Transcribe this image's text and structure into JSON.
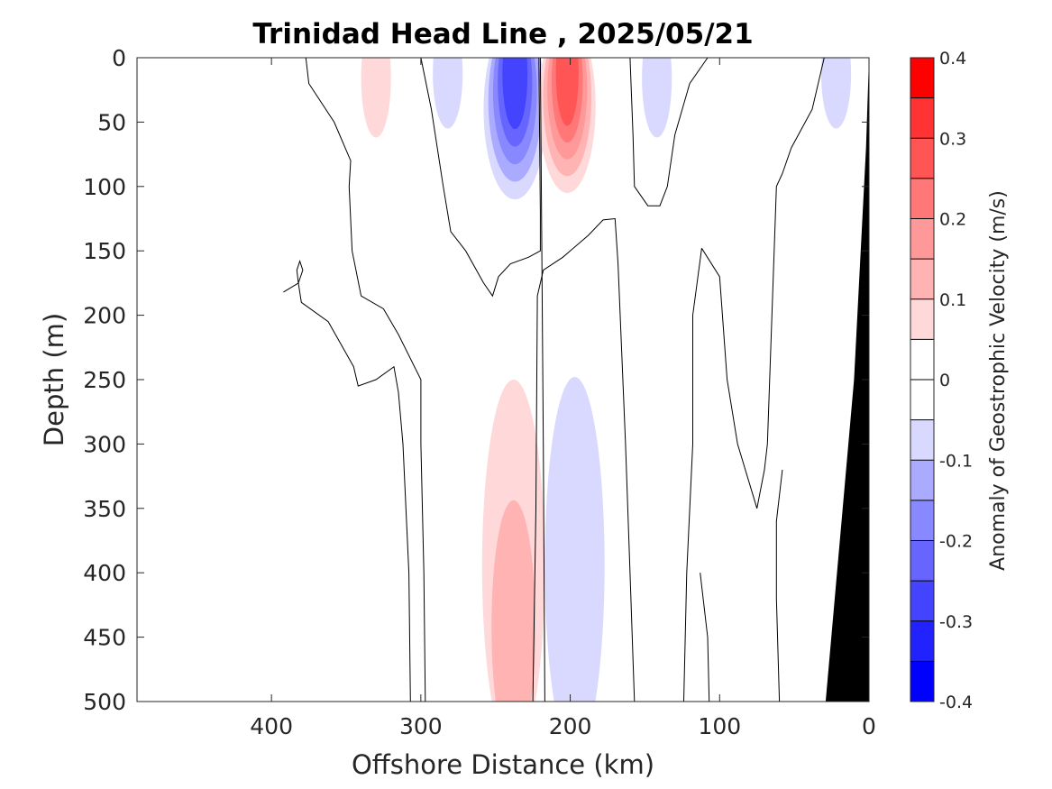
{
  "chart_data": {
    "type": "heatmap",
    "subtype": "filled-contour",
    "title": "Trinidad Head Line , 2025/05/21",
    "xlabel": "Offshore Distance (km)",
    "ylabel": "Depth (m)",
    "xlim": [
      490,
      0
    ],
    "ylim": [
      0,
      500
    ],
    "x_direction": "reversed",
    "y_direction": "reversed (depth increases downward)",
    "xticks": [
      400,
      300,
      200,
      100,
      0
    ],
    "yticks": [
      0,
      50,
      100,
      150,
      200,
      250,
      300,
      350,
      400,
      450,
      500
    ],
    "colorbar": {
      "label": "Anomaly of Geostrophic Velocity (m/s)",
      "range": [
        -0.4,
        0.4
      ],
      "ticks": [
        "0.4",
        "0.3",
        "0.2",
        "0.1",
        "0",
        "-0.1",
        "-0.2",
        "-0.3",
        "-0.4"
      ],
      "levels": [
        -0.4,
        -0.35,
        -0.3,
        -0.25,
        -0.2,
        -0.15,
        -0.1,
        -0.05,
        0.05,
        0.1,
        0.15,
        0.2,
        0.25,
        0.3,
        0.35,
        0.4
      ],
      "colors_neg": [
        "#0000ff",
        "#2222ff",
        "#4444ff",
        "#6666ff",
        "#8888ff",
        "#aaaaff",
        "#d9d9ff"
      ],
      "color_zero": "#ffffff",
      "colors_pos": [
        "#ffd9d9",
        "#ffb3b3",
        "#ff9999",
        "#ff7777",
        "#ff5555",
        "#ff3333",
        "#ff0000"
      ]
    },
    "features": [
      {
        "sign": "negative",
        "center_km": 237,
        "depth_range_m": [
          0,
          110
        ],
        "peak": -0.3
      },
      {
        "sign": "positive",
        "center_km": 202,
        "depth_range_m": [
          0,
          105
        ],
        "peak": 0.3
      },
      {
        "sign": "positive",
        "center_km": 330,
        "depth_range_m": [
          0,
          62
        ],
        "peak": 0.1
      },
      {
        "sign": "negative",
        "center_km": 282,
        "depth_range_m": [
          0,
          55
        ],
        "peak": -0.1
      },
      {
        "sign": "negative",
        "center_km": 142,
        "depth_range_m": [
          0,
          62
        ],
        "peak": -0.1
      },
      {
        "sign": "negative",
        "center_km": 22,
        "depth_range_m": [
          0,
          55
        ],
        "peak": -0.1
      },
      {
        "sign": "positive",
        "center_km": 238,
        "depth_range_m": [
          250,
          500
        ],
        "peak": 0.15
      },
      {
        "sign": "negative",
        "center_km": 197,
        "depth_range_m": [
          248,
          500
        ],
        "peak": -0.1
      }
    ],
    "bathymetry": {
      "color": "#000000",
      "description": "seafloor wedge near coast"
    }
  }
}
